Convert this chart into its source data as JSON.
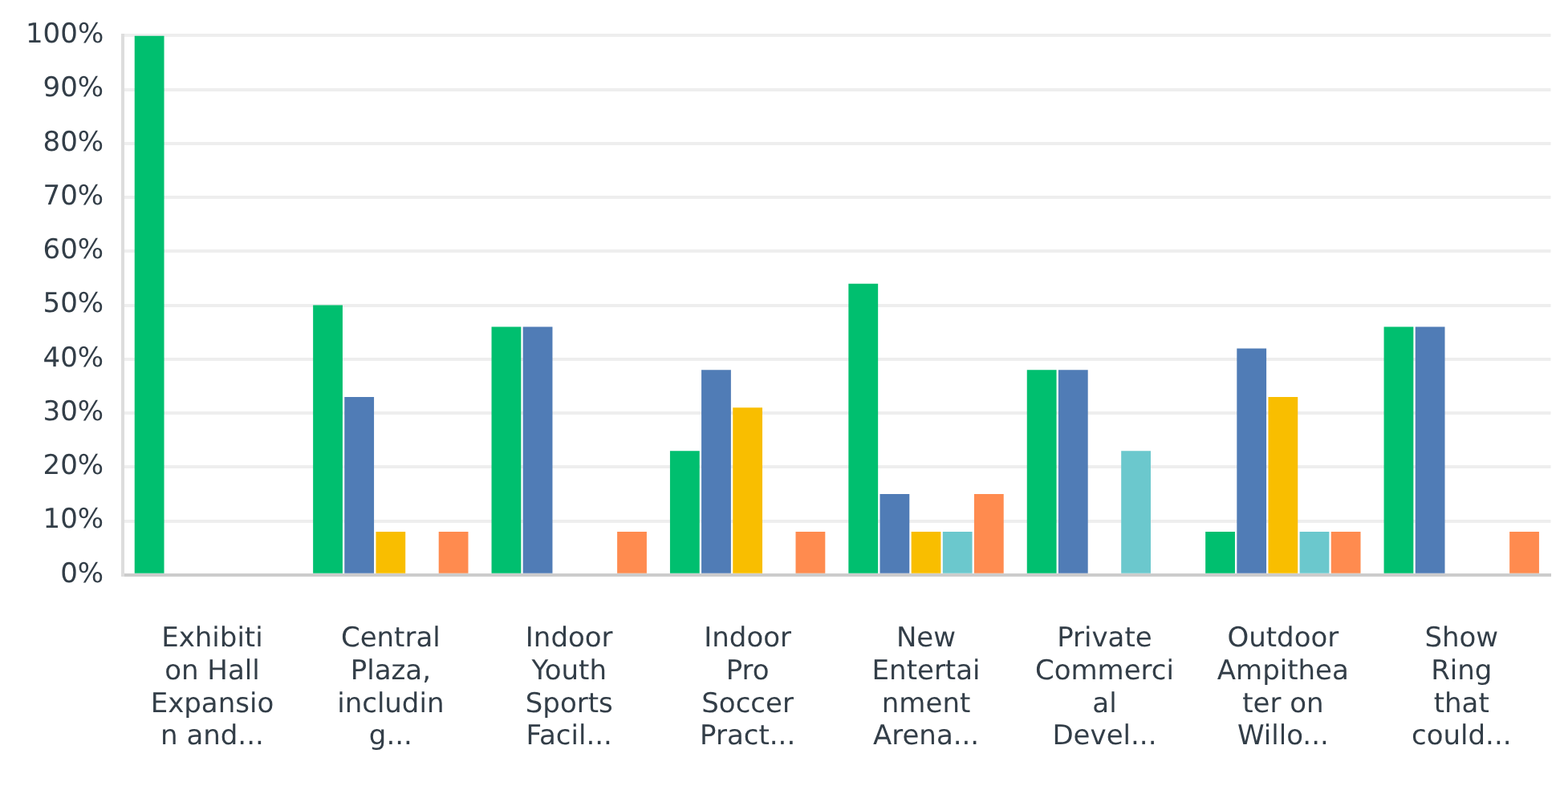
{
  "chart_data": {
    "type": "bar",
    "categories": [
      "Exhibition Hall Expansion and...",
      "Central Plaza, including...",
      "Indoor Youth Sports Facil...",
      "Indoor Pro Soccer Pract...",
      "New Entertainment Arena...",
      "Private Commercial Devel...",
      "Outdoor Ampitheater on Willo...",
      "Show Ring that could..."
    ],
    "series": [
      {
        "color": "#00bf6f",
        "values": [
          100,
          50,
          46,
          23,
          54,
          38,
          8,
          46
        ]
      },
      {
        "color": "#507cb6",
        "values": [
          0,
          33,
          46,
          38,
          15,
          38,
          42,
          46
        ]
      },
      {
        "color": "#f9be00",
        "values": [
          0,
          8,
          0,
          31,
          8,
          0,
          33,
          0
        ]
      },
      {
        "color": "#6bc8cd",
        "values": [
          0,
          0,
          0,
          0,
          8,
          23,
          8,
          0
        ]
      },
      {
        "color": "#ff8b4f",
        "values": [
          0,
          8,
          8,
          8,
          15,
          0,
          8,
          8
        ]
      }
    ],
    "ylim": [
      0,
      100
    ],
    "yticks": [
      {
        "value": 0,
        "label": "0%"
      },
      {
        "value": 10,
        "label": "10%"
      },
      {
        "value": 20,
        "label": "20%"
      },
      {
        "value": 30,
        "label": "30%"
      },
      {
        "value": 40,
        "label": "40%"
      },
      {
        "value": 50,
        "label": "50%"
      },
      {
        "value": 60,
        "label": "60%"
      },
      {
        "value": 70,
        "label": "70%"
      },
      {
        "value": 80,
        "label": "80%"
      },
      {
        "value": 90,
        "label": "90%"
      },
      {
        "value": 100,
        "label": "100%"
      }
    ],
    "grid": "y",
    "legend": false
  }
}
